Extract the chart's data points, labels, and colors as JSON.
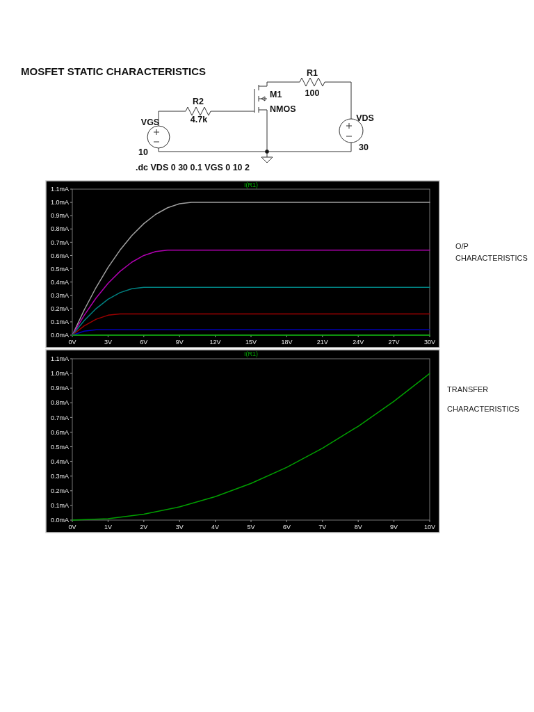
{
  "chart_data": [
    {
      "type": "other",
      "title": "MOSFET STATIC CHARACTERISTICS",
      "annotations": [
        "R1",
        "100",
        "M1",
        "NMOS",
        "R2",
        "4.7k",
        "VGS",
        "10",
        "VDS",
        "30",
        ".dc VDS 0 30 0.1 VGS 0 10 2"
      ]
    },
    {
      "type": "line",
      "title": "I(R1)",
      "annotations": [
        "O/P CHARACTERISTICS"
      ],
      "xlim": [
        0,
        30
      ],
      "ylim": [
        0,
        1.1
      ],
      "xticks": [
        {
          "value": 0,
          "label": "0V"
        },
        {
          "value": 3,
          "label": "3V"
        },
        {
          "value": 6,
          "label": "6V"
        },
        {
          "value": 9,
          "label": "9V"
        },
        {
          "value": 12,
          "label": "12V"
        },
        {
          "value": 15,
          "label": "15V"
        },
        {
          "value": 18,
          "label": "18V"
        },
        {
          "value": 21,
          "label": "21V"
        },
        {
          "value": 24,
          "label": "24V"
        },
        {
          "value": 27,
          "label": "27V"
        },
        {
          "value": 30,
          "label": "30V"
        }
      ],
      "yticks": [
        {
          "value": 0,
          "label": "0.0mA"
        },
        {
          "value": 0.1,
          "label": "0.1mA"
        },
        {
          "value": 0.2,
          "label": "0.2mA"
        },
        {
          "value": 0.3,
          "label": "0.3mA"
        },
        {
          "value": 0.4,
          "label": "0.4mA"
        },
        {
          "value": 0.5,
          "label": "0.5mA"
        },
        {
          "value": 0.6,
          "label": "0.6mA"
        },
        {
          "value": 0.7,
          "label": "0.7mA"
        },
        {
          "value": 0.8,
          "label": "0.8mA"
        },
        {
          "value": 0.9,
          "label": "0.9mA"
        },
        {
          "value": 1.0,
          "label": "1.0mA"
        },
        {
          "value": 1.1,
          "label": "1.1mA"
        }
      ],
      "series": [
        {
          "color": "#00b000",
          "x": [
            0,
            30
          ],
          "values": [
            0,
            0
          ]
        },
        {
          "color": "#0000c0",
          "x": [
            0,
            1,
            2,
            30
          ],
          "values": [
            0,
            0.03,
            0.04,
            0.04
          ]
        },
        {
          "color": "#a00000",
          "x": [
            0,
            1,
            2,
            3,
            4,
            30
          ],
          "values": [
            0,
            0.07,
            0.12,
            0.15,
            0.16,
            0.16
          ]
        },
        {
          "color": "#008080",
          "x": [
            0,
            1,
            2,
            3,
            4,
            5,
            6,
            30
          ],
          "values": [
            0,
            0.11,
            0.2,
            0.27,
            0.32,
            0.35,
            0.36,
            0.36
          ]
        },
        {
          "color": "#b000b0",
          "x": [
            0,
            1,
            2,
            3,
            4,
            5,
            6,
            7,
            8,
            30
          ],
          "values": [
            0,
            0.15,
            0.28,
            0.39,
            0.48,
            0.55,
            0.6,
            0.63,
            0.64,
            0.64
          ]
        },
        {
          "color": "#a0a0a0",
          "x": [
            0,
            1,
            2,
            3,
            4,
            5,
            6,
            7,
            8,
            9,
            10,
            30
          ],
          "values": [
            0,
            0.19,
            0.36,
            0.51,
            0.64,
            0.75,
            0.84,
            0.91,
            0.96,
            0.99,
            1.0,
            1.0
          ]
        }
      ]
    },
    {
      "type": "line",
      "title": "I(R1)",
      "annotations": [
        "TRANSFER CHARACTERISTICS"
      ],
      "xlim": [
        0,
        10
      ],
      "ylim": [
        0,
        1.1
      ],
      "xticks": [
        {
          "value": 0,
          "label": "0V"
        },
        {
          "value": 1,
          "label": "1V"
        },
        {
          "value": 2,
          "label": "2V"
        },
        {
          "value": 3,
          "label": "3V"
        },
        {
          "value": 4,
          "label": "4V"
        },
        {
          "value": 5,
          "label": "5V"
        },
        {
          "value": 6,
          "label": "6V"
        },
        {
          "value": 7,
          "label": "7V"
        },
        {
          "value": 8,
          "label": "8V"
        },
        {
          "value": 9,
          "label": "9V"
        },
        {
          "value": 10,
          "label": "10V"
        }
      ],
      "yticks": [
        {
          "value": 0,
          "label": "0.0mA"
        },
        {
          "value": 0.1,
          "label": "0.1mA"
        },
        {
          "value": 0.2,
          "label": "0.2mA"
        },
        {
          "value": 0.3,
          "label": "0.3mA"
        },
        {
          "value": 0.4,
          "label": "0.4mA"
        },
        {
          "value": 0.5,
          "label": "0.5mA"
        },
        {
          "value": 0.6,
          "label": "0.6mA"
        },
        {
          "value": 0.7,
          "label": "0.7mA"
        },
        {
          "value": 0.8,
          "label": "0.8mA"
        },
        {
          "value": 0.9,
          "label": "0.9mA"
        },
        {
          "value": 1.0,
          "label": "1.0mA"
        },
        {
          "value": 1.1,
          "label": "1.1mA"
        }
      ],
      "series": [
        {
          "color": "#00a000",
          "x": [
            0,
            1,
            2,
            3,
            4,
            5,
            6,
            7,
            8,
            9,
            10
          ],
          "values": [
            0,
            0.01,
            0.04,
            0.09,
            0.16,
            0.25,
            0.36,
            0.49,
            0.64,
            0.81,
            1.0
          ]
        }
      ]
    }
  ]
}
